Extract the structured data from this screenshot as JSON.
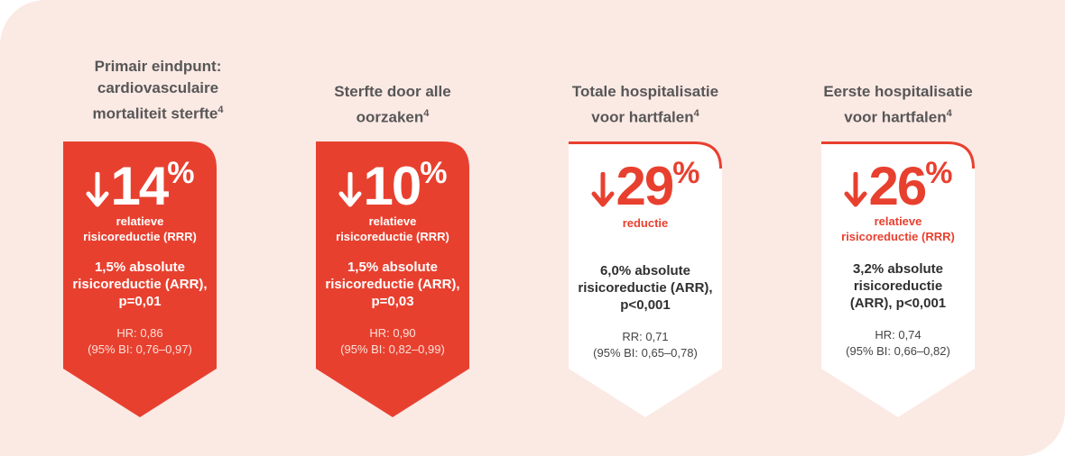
{
  "colors": {
    "background": "#fbe9e4",
    "accent_red": "#e8402f",
    "card_white": "#ffffff",
    "heading_text": "#575757"
  },
  "columns": [
    {
      "heading": [
        "Primair eindpunt:",
        "cardiovasculaire",
        "mortaliteit sterfte"
      ],
      "heading_sup": "4",
      "style": "red",
      "arrow_icon": "down-arrow-icon",
      "value": "14",
      "unit": "%",
      "label": [
        "relatieve",
        "risicoreductie (RRR)"
      ],
      "absolute": [
        "1,5% absolute",
        "risicoreductie (ARR),",
        "p=0,01"
      ],
      "stat": [
        "HR: 0,86",
        "(95% BI: 0,76–0,97)"
      ]
    },
    {
      "heading": [
        "Sterfte door alle",
        "oorzaken"
      ],
      "heading_sup": "4",
      "style": "red",
      "arrow_icon": "down-arrow-icon",
      "value": "10",
      "unit": "%",
      "label": [
        "relatieve",
        "risicoreductie (RRR)"
      ],
      "absolute": [
        "1,5% absolute",
        "risicoreductie (ARR),",
        "p=0,03"
      ],
      "stat": [
        "HR: 0,90",
        "(95% BI: 0,82–0,99)"
      ]
    },
    {
      "heading": [
        "Totale hospitalisatie",
        "voor hartfalen"
      ],
      "heading_sup": "4",
      "style": "white",
      "arrow_icon": "down-arrow-icon",
      "value": "29",
      "unit": "%",
      "label": [
        "reductie"
      ],
      "absolute": [
        "6,0% absolute",
        "risicoreductie (ARR),",
        "p<0,001"
      ],
      "stat": [
        "RR: 0,71",
        "(95% BI: 0,65–0,78)"
      ]
    },
    {
      "heading": [
        "Eerste hospitalisatie",
        "voor hartfalen"
      ],
      "heading_sup": "4",
      "style": "white",
      "arrow_icon": "down-arrow-icon",
      "value": "26",
      "unit": "%",
      "label": [
        "relatieve",
        "risicoreductie (RRR)"
      ],
      "absolute": [
        "3,2% absolute",
        "risicoreductie",
        "(ARR), p<0,001"
      ],
      "stat": [
        "HR: 0,74",
        "(95% BI: 0,66–0,82)"
      ]
    }
  ]
}
